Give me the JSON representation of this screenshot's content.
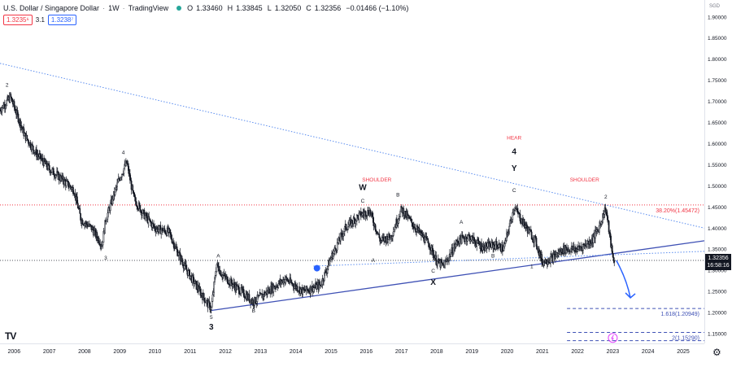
{
  "header": {
    "symbol": "U.S. Dollar / Singapore Dollar",
    "interval": "1W",
    "source": "TradingView",
    "status_color": "#26a69a",
    "o_label": "O",
    "o": "1.33460",
    "h_label": "H",
    "h": "1.33845",
    "l_label": "L",
    "l": "1.32050",
    "c_label": "C",
    "c": "1.32356",
    "change": "−0.01466 (−1.10%)"
  },
  "boxes": {
    "left": "1.3235⁶",
    "spread": "3.1",
    "right": "1.3238⁷"
  },
  "currency": "SGD",
  "price_tag": {
    "price": "1.32356",
    "countdown": "16:58:16"
  },
  "colors": {
    "candle": "#131722",
    "wedge": "#3f51b5",
    "channel": "#5b8def",
    "fib_red": "#f23645",
    "fib_blue": "#3f51b5",
    "label": "#131722",
    "red_label": "#f23645",
    "arrow": "#2962ff"
  },
  "icons": {
    "logo": "tradingview-logo-icon",
    "alert": "alarm-clock-icon",
    "bolt": "lightning-icon",
    "settings": "gear-icon"
  },
  "chart_data": {
    "type": "candlestick",
    "title": "U.S. Dollar / Singapore Dollar · 1W · TradingView",
    "y_axis_ticks": [
      1.15,
      1.2,
      1.25,
      1.3,
      1.35,
      1.4,
      1.45,
      1.5,
      1.55,
      1.6,
      1.65,
      1.7,
      1.75,
      1.8,
      1.85,
      1.9
    ],
    "y_tick_labels": [
      "1.15000",
      "1.20000",
      "1.25000",
      "1.30000",
      "1.35000",
      "1.40000",
      "1.45000",
      "1.50000",
      "1.55000",
      "1.60000",
      "1.65000",
      "1.70000",
      "1.75000",
      "1.80000",
      "1.85000",
      "1.90000"
    ],
    "ylim": [
      1.127,
      1.94
    ],
    "x_tick_labels": [
      "2006",
      "2007",
      "2008",
      "2009",
      "2010",
      "2011",
      "2012",
      "2013",
      "2014",
      "2015",
      "2016",
      "2017",
      "2018",
      "2019",
      "2020",
      "2021",
      "2022",
      "2023",
      "2024",
      "2025"
    ],
    "xlim": [
      2005.6,
      2025.6
    ],
    "price_path": [
      [
        2005.6,
        1.68
      ],
      [
        2005.9,
        1.71
      ],
      [
        2006.3,
        1.62
      ],
      [
        2006.6,
        1.58
      ],
      [
        2007.0,
        1.54
      ],
      [
        2007.3,
        1.52
      ],
      [
        2007.7,
        1.49
      ],
      [
        2007.9,
        1.42
      ],
      [
        2008.2,
        1.4
      ],
      [
        2008.5,
        1.36
      ],
      [
        2008.6,
        1.42
      ],
      [
        2008.8,
        1.47
      ],
      [
        2009.0,
        1.52
      ],
      [
        2009.2,
        1.555
      ],
      [
        2009.4,
        1.47
      ],
      [
        2009.7,
        1.43
      ],
      [
        2010.0,
        1.4
      ],
      [
        2010.4,
        1.39
      ],
      [
        2010.6,
        1.35
      ],
      [
        2010.9,
        1.3
      ],
      [
        2011.2,
        1.26
      ],
      [
        2011.5,
        1.22
      ],
      [
        2011.6,
        1.21
      ],
      [
        2011.75,
        1.315
      ],
      [
        2011.9,
        1.29
      ],
      [
        2012.3,
        1.26
      ],
      [
        2012.8,
        1.225
      ],
      [
        2013.2,
        1.25
      ],
      [
        2013.7,
        1.28
      ],
      [
        2014.2,
        1.25
      ],
      [
        2014.7,
        1.265
      ],
      [
        2015.0,
        1.33
      ],
      [
        2015.4,
        1.4
      ],
      [
        2015.8,
        1.43
      ],
      [
        2016.1,
        1.44
      ],
      [
        2016.4,
        1.37
      ],
      [
        2016.7,
        1.38
      ],
      [
        2017.0,
        1.445
      ],
      [
        2017.4,
        1.4
      ],
      [
        2017.8,
        1.36
      ],
      [
        2018.0,
        1.32
      ],
      [
        2018.2,
        1.31
      ],
      [
        2018.6,
        1.37
      ],
      [
        2018.9,
        1.38
      ],
      [
        2019.3,
        1.355
      ],
      [
        2019.7,
        1.36
      ],
      [
        2019.9,
        1.35
      ],
      [
        2020.2,
        1.45
      ],
      [
        2020.4,
        1.42
      ],
      [
        2020.8,
        1.37
      ],
      [
        2021.0,
        1.32
      ],
      [
        2021.3,
        1.33
      ],
      [
        2021.6,
        1.35
      ],
      [
        2022.0,
        1.35
      ],
      [
        2022.4,
        1.37
      ],
      [
        2022.6,
        1.4
      ],
      [
        2022.8,
        1.448
      ],
      [
        2023.0,
        1.33
      ],
      [
        2023.05,
        1.3235
      ]
    ],
    "last_price": 1.32356,
    "horizontal_levels": [
      {
        "label": "38.20%(1.45472)",
        "value": 1.45472,
        "color": "#f23645",
        "style": "dotted"
      },
      {
        "label": "1.618(1.20949)",
        "value": 1.20949,
        "color": "#3f51b5",
        "style": "dashed"
      },
      {
        "label": "2(1.15290)",
        "value": 1.1529,
        "color": "#3f51b5",
        "style": "dashed"
      },
      {
        "label": "1.618(1.13346)",
        "value": 1.13346,
        "color": "#3f51b5",
        "style": "dashed"
      }
    ],
    "trendlines": [
      {
        "name": "descending-trendline",
        "from": [
          2005.6,
          1.79
        ],
        "to": [
          2025.6,
          1.4
        ],
        "style": "dotted",
        "color": "#5b8def"
      },
      {
        "name": "wedge-support",
        "from": [
          2011.6,
          1.205
        ],
        "to": [
          2025.6,
          1.37
        ],
        "style": "solid",
        "color": "#3f51b5"
      },
      {
        "name": "channel-line",
        "from": [
          2014.5,
          1.31
        ],
        "to": [
          2025.6,
          1.345
        ],
        "style": "dotted",
        "color": "#5b8def"
      }
    ],
    "projection_arrow": {
      "from": [
        2023.1,
        1.3235
      ],
      "to": [
        2023.5,
        1.235
      ]
    },
    "wave_labels": [
      {
        "text": "2",
        "x": 2005.8,
        "y": 1.735,
        "color": "#131722"
      },
      {
        "text": "4",
        "x": 2009.1,
        "y": 1.575,
        "color": "#131722"
      },
      {
        "text": "3",
        "x": 2008.6,
        "y": 1.325,
        "color": "#131722"
      },
      {
        "text": "5",
        "x": 2011.6,
        "y": 1.185,
        "color": "#131722"
      },
      {
        "text": "3",
        "x": 2011.6,
        "y": 1.16,
        "color": "#131722",
        "bold": true
      },
      {
        "text": "A",
        "x": 2011.8,
        "y": 1.33,
        "color": "#131722"
      },
      {
        "text": "B",
        "x": 2012.8,
        "y": 1.2,
        "color": "#131722"
      },
      {
        "text": "W",
        "x": 2015.9,
        "y": 1.49,
        "color": "#131722",
        "bold": true
      },
      {
        "text": "C",
        "x": 2015.9,
        "y": 1.46,
        "color": "#131722"
      },
      {
        "text": "SHOULDER",
        "x": 2016.3,
        "y": 1.51,
        "color": "#f23645"
      },
      {
        "text": "A",
        "x": 2016.2,
        "y": 1.32,
        "color": "#131722"
      },
      {
        "text": "B",
        "x": 2016.9,
        "y": 1.475,
        "color": "#131722"
      },
      {
        "text": "C",
        "x": 2017.9,
        "y": 1.295,
        "color": "#131722"
      },
      {
        "text": "X",
        "x": 2017.9,
        "y": 1.266,
        "color": "#131722",
        "bold": true
      },
      {
        "text": "A",
        "x": 2018.7,
        "y": 1.41,
        "color": "#131722"
      },
      {
        "text": "B",
        "x": 2019.6,
        "y": 1.33,
        "color": "#131722"
      },
      {
        "text": "HEAR",
        "x": 2020.2,
        "y": 1.61,
        "color": "#f23645"
      },
      {
        "text": "4",
        "x": 2020.2,
        "y": 1.575,
        "color": "#131722",
        "bold": true
      },
      {
        "text": "Y",
        "x": 2020.2,
        "y": 1.535,
        "color": "#131722",
        "bold": true
      },
      {
        "text": "C",
        "x": 2020.2,
        "y": 1.485,
        "color": "#131722"
      },
      {
        "text": "1",
        "x": 2020.7,
        "y": 1.305,
        "color": "#131722"
      },
      {
        "text": "SHOULDER",
        "x": 2022.2,
        "y": 1.51,
        "color": "#f23645"
      },
      {
        "text": "2",
        "x": 2022.8,
        "y": 1.47,
        "color": "#131722"
      }
    ]
  }
}
